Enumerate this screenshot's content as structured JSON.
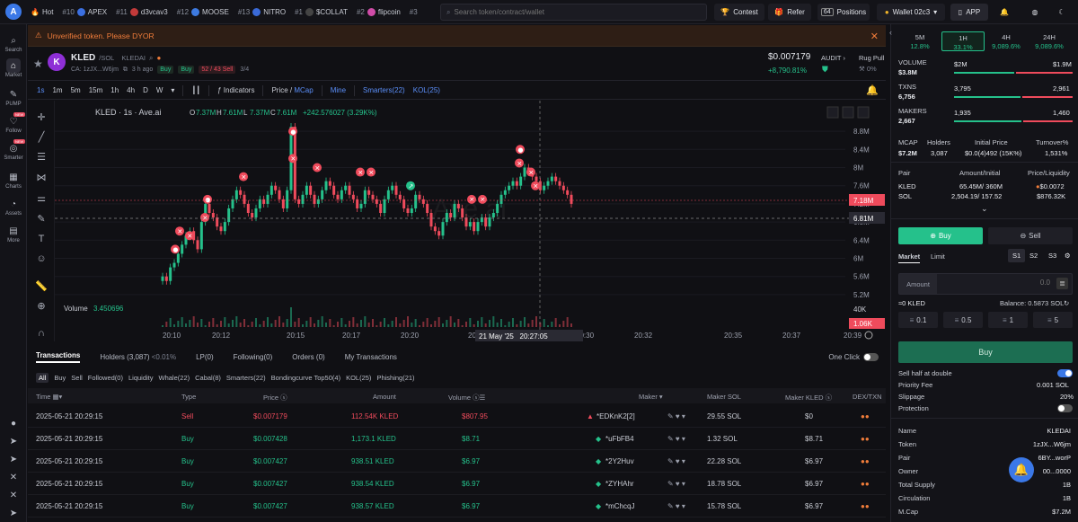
{
  "topbar": {
    "logo": "A",
    "hot_label": "Hot",
    "ticker": [
      {
        "rank": "#10",
        "name": "APEX",
        "color": "#3b6fe0"
      },
      {
        "rank": "#11",
        "name": "d3vcav3",
        "color": "#c23a3a"
      },
      {
        "rank": "#12",
        "name": "MOOSE",
        "color": "#3d7ae0"
      },
      {
        "rank": "#13",
        "name": "NITRO",
        "color": "#3a6ad8"
      },
      {
        "rank": "#1",
        "name": "$COLLAT",
        "color": "#444"
      },
      {
        "rank": "#2",
        "name": "flipcoin",
        "color": "#d04ca8"
      },
      {
        "rank": "#3",
        "name": "",
        "color": "#333"
      }
    ],
    "search_placeholder": "Search token/contract/wallet",
    "contest": "Contest",
    "refer": "Refer",
    "positions_count": "64",
    "positions": "Positions",
    "wallet": "Wallet 02c3",
    "app": "APP"
  },
  "sidebar": [
    {
      "label": "Search",
      "icon": "search-icon"
    },
    {
      "label": "Market",
      "icon": "market-icon"
    },
    {
      "label": "PUMP",
      "icon": "pump-icon"
    },
    {
      "label": "Follow",
      "icon": "follow-icon"
    },
    {
      "label": "Smarter",
      "icon": "smarter-icon"
    },
    {
      "label": "Charts",
      "icon": "charts-icon"
    },
    {
      "label": "Assets",
      "icon": "assets-icon"
    },
    {
      "label": "More",
      "icon": "more-icon"
    }
  ],
  "warning": "Unverified token. Please DYOR",
  "token": {
    "symbol": "KLED",
    "chain": "/SOL",
    "name": "KLEDAI",
    "ca": "CA: 1zJX...W6jm",
    "age": "3 h ago",
    "buy1": "Buy",
    "buy2": "Buy",
    "buysell": "52 / 43 Sell",
    "ratio": "3/4",
    "price": "$0.007179",
    "change": "+8,790.81%",
    "audit": "AUDIT",
    "rug": "Rug Pull",
    "rug_val": "0%"
  },
  "toolbar": {
    "intervals": [
      "1s",
      "1m",
      "5m",
      "15m",
      "1h",
      "4h",
      "D",
      "W"
    ],
    "indicators": "Indicators",
    "price": "Price",
    "mcap": "MCap",
    "mine": "Mine",
    "smarters": "Smarters(22)",
    "kol": "KOL(25)"
  },
  "chart_data": {
    "type": "candlestick",
    "title": "KLED · 1s · Ave.ai",
    "ohlc": {
      "o": "7.37M",
      "h": "7.61M",
      "l": "7.37M",
      "c": "7.61M",
      "chg": "+242.576027 (3.29K%)"
    },
    "y_ticks": [
      "8.8M",
      "8.4M",
      "8M",
      "7.6M",
      "7.2M",
      "6.8M",
      "6.4M",
      "6M",
      "5.6M",
      "5.2M"
    ],
    "ylim": [
      5.0,
      9.0
    ],
    "price_tag": "7.18M",
    "cursor_tag": "6.81M",
    "x_ticks": [
      "20:10",
      "20:12",
      "20:15",
      "20:17",
      "20:20",
      "20:22",
      "20:25",
      "20:30",
      "20:32",
      "20:35",
      "20:37",
      "20:39"
    ],
    "cursor_time": "21 May '25   20:27:05",
    "volume_label": "Volume",
    "volume_value": "3.450696",
    "vol_ticks": [
      "40K",
      "1.06K"
    ],
    "watermark": "Ave.ai",
    "close_series": [
      5.6,
      5.5,
      5.8,
      5.9,
      6.1,
      6.3,
      6.5,
      6.6,
      6.4,
      6.2,
      6.8,
      7.2,
      7.0,
      6.9,
      6.7,
      6.6,
      6.8,
      7.1,
      7.3,
      7.5,
      7.4,
      7.2,
      7.0,
      6.9,
      7.1,
      7.3,
      7.2,
      7.4,
      7.6,
      7.5,
      7.3,
      7.1,
      7.5,
      8.9,
      7.3,
      7.2,
      7.4,
      7.6,
      7.4,
      7.2,
      7.3,
      7.5,
      7.7,
      7.6,
      7.4,
      7.3,
      7.5,
      7.6,
      7.4,
      7.3,
      7.1,
      7.2,
      7.5,
      7.4,
      7.3,
      7.2,
      7.0,
      7.3,
      7.5,
      7.6,
      7.4,
      7.3,
      7.1,
      7.0,
      7.1,
      7.4,
      7.3,
      7.2,
      7.0,
      6.7,
      6.6,
      6.5,
      6.8,
      7.0,
      6.9,
      7.2,
      7.1,
      6.9,
      6.7,
      6.8,
      6.6,
      6.8,
      6.9,
      6.7,
      6.9,
      7.0,
      7.2,
      7.4,
      7.5,
      7.6,
      7.7,
      7.6,
      7.8,
      8.0,
      7.9,
      7.8,
      7.7,
      7.5,
      7.6,
      7.7,
      7.8,
      7.7,
      7.6,
      7.5,
      7.4,
      7.2
    ]
  },
  "tx_tabs": [
    "Transactions",
    "Holders (3,087)",
    "<0.01%",
    "LP(0)",
    "Following(0)",
    "Orders (0)",
    "My Transactions"
  ],
  "one_click": "One Click",
  "filters": [
    "All",
    "Buy",
    "Sell",
    "Followed(0)",
    "Liquidity",
    "Whale(22)",
    "Cabal(8)",
    "Smarters(22)",
    "Bondingcurve Top50(4)",
    "KOL(25)",
    "Phishing(21)"
  ],
  "tx_columns": [
    "Time",
    "Type",
    "Price",
    "Amount",
    "Volume",
    "Maker",
    "Maker SOL",
    "Maker KLED",
    "DEX/TXN"
  ],
  "transactions": [
    {
      "time": "2025-05-21 20:29:15",
      "type": "Sell",
      "price": "$0.007179",
      "amount": "112.54K KLED",
      "volume": "$807.95",
      "maker": "*EDKnK2[2]",
      "maker_sol": "29.55 SOL",
      "maker_kled": "$0"
    },
    {
      "time": "2025-05-21 20:29:15",
      "type": "Buy",
      "price": "$0.007428",
      "amount": "1,173.1 KLED",
      "volume": "$8.71",
      "maker": "*uFbFB4",
      "maker_sol": "1.32 SOL",
      "maker_kled": "$8.71"
    },
    {
      "time": "2025-05-21 20:29:15",
      "type": "Buy",
      "price": "$0.007427",
      "amount": "938.51 KLED",
      "volume": "$6.97",
      "maker": "*2Y2Huv",
      "maker_sol": "22.28 SOL",
      "maker_kled": "$6.97"
    },
    {
      "time": "2025-05-21 20:29:15",
      "type": "Buy",
      "price": "$0.007427",
      "amount": "938.54 KLED",
      "volume": "$6.97",
      "maker": "*ZYHAhr",
      "maker_sol": "18.78 SOL",
      "maker_kled": "$6.97"
    },
    {
      "time": "2025-05-21 20:29:15",
      "type": "Buy",
      "price": "$0.007427",
      "amount": "938.57 KLED",
      "volume": "$6.97",
      "maker": "*mChcqJ",
      "maker_sol": "15.78 SOL",
      "maker_kled": "$6.97"
    }
  ],
  "right": {
    "timeframes": [
      {
        "label": "5M",
        "pct": "12.8%"
      },
      {
        "label": "1H",
        "pct": "33.1%"
      },
      {
        "label": "4H",
        "pct": "9,089.6%"
      },
      {
        "label": "24H",
        "pct": "9,089.6%"
      }
    ],
    "stats": [
      {
        "label": "VOLUME",
        "value": "$3.8M",
        "buy": "$2M",
        "sell": "$1.9M",
        "buy_frac": 0.51
      },
      {
        "label": "TXNS",
        "value": "6,756",
        "buy": "3,795",
        "sell": "2,961",
        "buy_frac": 0.56
      },
      {
        "label": "MAKERS",
        "value": "2,667",
        "buy": "1,935",
        "sell": "1,460",
        "buy_frac": 0.57
      }
    ],
    "mcap_label": "MCAP",
    "mcap": "$7.2M",
    "holders_label": "Holders",
    "holders": "3,087",
    "initial_label": "Initial Price",
    "initial": "$0.0(4)492 (15K%)",
    "turnover_label": "Turnover%",
    "turnover": "1,531%",
    "pair_head": [
      "Pair",
      "Amount/Initial",
      "Price/Liquidity"
    ],
    "pairs": [
      {
        "sym": "KLED",
        "amount": "65.45M/ 360M",
        "price": "$0.0072"
      },
      {
        "sym": "SOL",
        "amount": "2,504.19/ 157.52",
        "price": "$876.32K"
      }
    ],
    "buy_tab": "Buy",
    "sell_tab": "Sell",
    "market": "Market",
    "limit": "Limit",
    "slots": [
      "S1",
      "S2",
      "S3"
    ],
    "amount_label": "Amount",
    "amount_value": "0.0",
    "est": "≈0 KLED",
    "balance": "Balance: 0.5873 SOL",
    "presets": [
      "0.1",
      "0.5",
      "1",
      "5"
    ],
    "buy_btn": "Buy",
    "sell_half": "Sell half at double",
    "priority": "Priority Fee",
    "priority_val": "0.001 SOL",
    "slippage": "Slippage",
    "slippage_val": "20%",
    "protection": "Protection",
    "info": [
      {
        "k": "Name",
        "v": "KLEDAI"
      },
      {
        "k": "Token",
        "v": "1zJX...W6jm"
      },
      {
        "k": "Pair",
        "v": "6BY...worP"
      },
      {
        "k": "Owner",
        "v": "00...0000"
      },
      {
        "k": "Total Supply",
        "v": "1B"
      },
      {
        "k": "Circulation",
        "v": "1B"
      },
      {
        "k": "M.Cap",
        "v": "$7.2M"
      }
    ]
  }
}
